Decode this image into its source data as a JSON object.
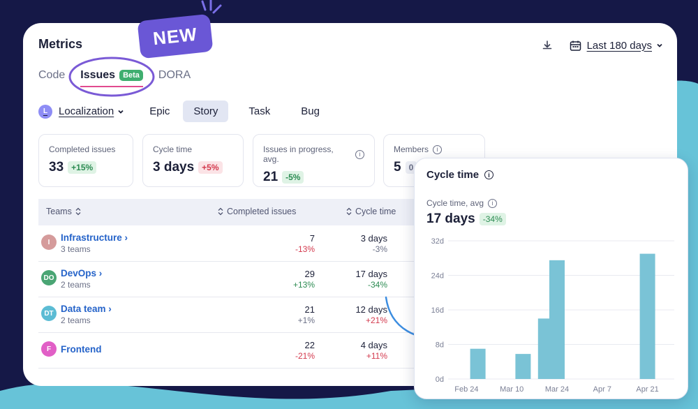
{
  "colors": {
    "accent": "#6a57d6",
    "bar": "#7ac3d6",
    "link": "#2563c9",
    "positive": "#2c8b52",
    "negative": "#d3394d"
  },
  "new_badge": "NEW",
  "header": {
    "title": "Metrics",
    "download_icon": "download-icon",
    "date_range": "Last 180 days"
  },
  "tabs": [
    {
      "label": "Code"
    },
    {
      "label": "Issues",
      "badge": "Beta",
      "active": true
    },
    {
      "label": "DORA"
    }
  ],
  "filters": {
    "project_initial": "L",
    "project": "Localization",
    "types": [
      "Epic",
      "Story",
      "Task",
      "Bug"
    ],
    "selected_type": "Story"
  },
  "metrics": [
    {
      "label": "Completed issues",
      "value": "33",
      "delta": "+15%"
    },
    {
      "label": "Cycle time",
      "value": "3 days",
      "delta": "+5%"
    },
    {
      "label": "Issues in progress, avg.",
      "value": "21",
      "delta": "-5%"
    },
    {
      "label": "Members",
      "value": "5",
      "delta": "0"
    }
  ],
  "table": {
    "columns": [
      "Teams",
      "Completed issues",
      "Cycle time"
    ],
    "rows": [
      {
        "initials": "I",
        "name": "Infrastructure ›",
        "sub": "3 teams",
        "completed": "7",
        "completed_delta": "-13%",
        "cycle": "3 days",
        "cycle_delta": "-3%",
        "avatar_color": "#d59b9b"
      },
      {
        "initials": "DO",
        "name": "DevOps ›",
        "sub": "2 teams",
        "completed": "29",
        "completed_delta": "+13%",
        "cycle": "17 days",
        "cycle_delta": "-34%",
        "avatar_color": "#4aa574"
      },
      {
        "initials": "DT",
        "name": "Data team ›",
        "sub": "2 teams",
        "completed": "21",
        "completed_delta": "+1%",
        "cycle": "12 days",
        "cycle_delta": "+21%",
        "avatar_color": "#5cbcd4"
      },
      {
        "initials": "F",
        "name": "Frontend",
        "sub": "",
        "completed": "22",
        "completed_delta": "-21%",
        "cycle": "4 days",
        "cycle_delta": "+11%",
        "avatar_color": "#e15fc6"
      }
    ]
  },
  "chart_card": {
    "title": "Cycle time",
    "subtitle": "Cycle time, avg",
    "value": "17 days",
    "delta": "-34%"
  },
  "chart_data": {
    "type": "bar",
    "categories": [
      "Feb 24",
      "Mar 10",
      "Mar 24",
      "Apr 7",
      "Apr 21"
    ],
    "bars": [
      {
        "x": "Feb 24",
        "offset": 0.5,
        "value": 7
      },
      {
        "x": "Mar 10",
        "offset": 0.5,
        "value": 5.8
      },
      {
        "x": "Mar 10",
        "offset": 1.5,
        "value": 14
      },
      {
        "x": "Mar 24",
        "offset": 0,
        "value": 27.5
      },
      {
        "x": "Apr 21",
        "offset": 0,
        "value": 29
      }
    ],
    "yticks": [
      "0d",
      "8d",
      "16d",
      "24d",
      "32d"
    ],
    "ylim": [
      0,
      32
    ],
    "grid": true
  }
}
